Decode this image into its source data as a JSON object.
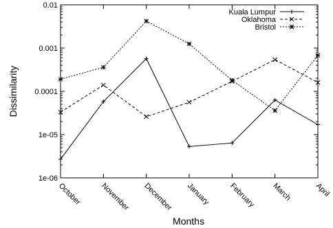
{
  "chart_data": {
    "type": "line",
    "title": "",
    "xlabel": "Months",
    "ylabel": "Dissimilarity",
    "yscale": "log",
    "ylim": [
      1e-06,
      0.01
    ],
    "yticks": [
      "1e-06",
      "1e-05",
      "0.0001",
      "0.001",
      "0.01"
    ],
    "categories": [
      "October",
      "November",
      "December",
      "January",
      "February",
      "March",
      "April"
    ],
    "grid": false,
    "legend_position": "top-right",
    "series": [
      {
        "name": "Kuala Lumpur",
        "line_style": "solid",
        "marker": "plus",
        "color": "#000000",
        "values": [
          2.7e-06,
          5.8e-05,
          0.00057,
          5.3e-06,
          6.4e-06,
          6.3e-05,
          1.7e-05
        ]
      },
      {
        "name": "Oklahoma",
        "line_style": "dashed",
        "marker": "cross",
        "color": "#000000",
        "values": [
          3.3e-05,
          0.00014,
          2.6e-05,
          5.6e-05,
          0.00017,
          0.00054,
          0.00016
        ]
      },
      {
        "name": "Bristol",
        "line_style": "dotted",
        "marker": "star",
        "color": "#000000",
        "values": [
          0.00019,
          0.00036,
          0.0042,
          0.00125,
          0.00018,
          3.6e-05,
          0.00068
        ]
      }
    ]
  }
}
